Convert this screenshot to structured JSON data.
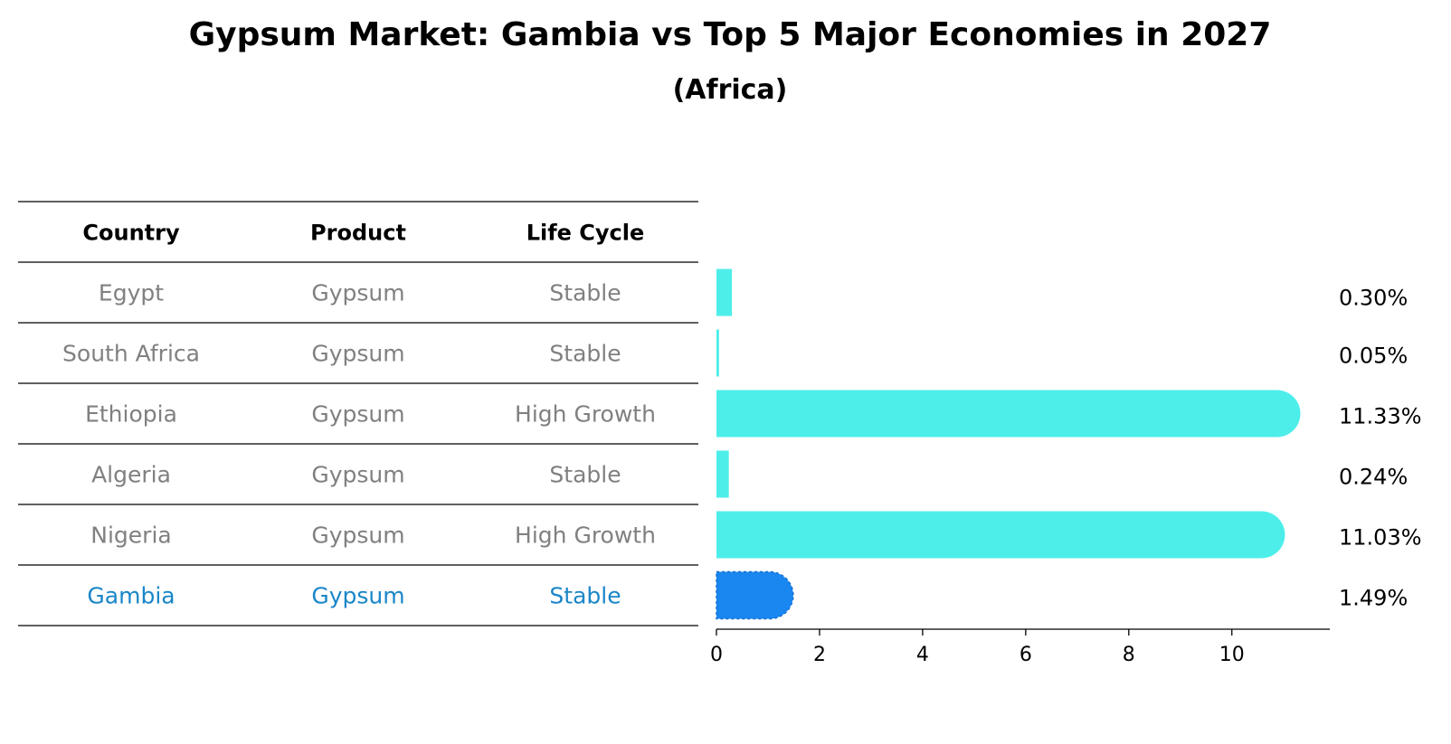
{
  "chart_data": {
    "type": "bar",
    "orientation": "horizontal",
    "title": "Gypsum Market: Gambia vs Top 5 Major Economies in 2027",
    "subtitle": "(Africa)",
    "table": {
      "headers": [
        "Country",
        "Product",
        "Life Cycle"
      ],
      "rows": [
        {
          "country": "Egypt",
          "product": "Gypsum",
          "life_cycle": "Stable",
          "highlight": false
        },
        {
          "country": "South Africa",
          "product": "Gypsum",
          "life_cycle": "Stable",
          "highlight": false
        },
        {
          "country": "Ethiopia",
          "product": "Gypsum",
          "life_cycle": "High Growth",
          "highlight": false
        },
        {
          "country": "Algeria",
          "product": "Gypsum",
          "life_cycle": "Stable",
          "highlight": false
        },
        {
          "country": "Nigeria",
          "product": "Gypsum",
          "life_cycle": "High Growth",
          "highlight": false
        },
        {
          "country": "Gambia",
          "product": "Gypsum",
          "life_cycle": "Stable",
          "highlight": true
        }
      ]
    },
    "categories": [
      "Egypt",
      "South Africa",
      "Ethiopia",
      "Algeria",
      "Nigeria",
      "Gambia"
    ],
    "values": [
      0.3,
      0.05,
      11.33,
      0.24,
      11.03,
      1.49
    ],
    "value_labels": [
      "0.30%",
      "0.05%",
      "11.33%",
      "0.24%",
      "11.03%",
      "1.49%"
    ],
    "x_ticks": [
      "0",
      "2",
      "4",
      "6",
      "8",
      "10"
    ],
    "tick_values": [
      0,
      2,
      4,
      6,
      8,
      10
    ],
    "xlim": [
      0,
      11.9
    ],
    "grid": false,
    "colors": {
      "bar": "#4DEEEA",
      "highlight_bar": "#1A86F0",
      "muted_text": "#808080",
      "highlight_text": "#1A86C8"
    }
  }
}
